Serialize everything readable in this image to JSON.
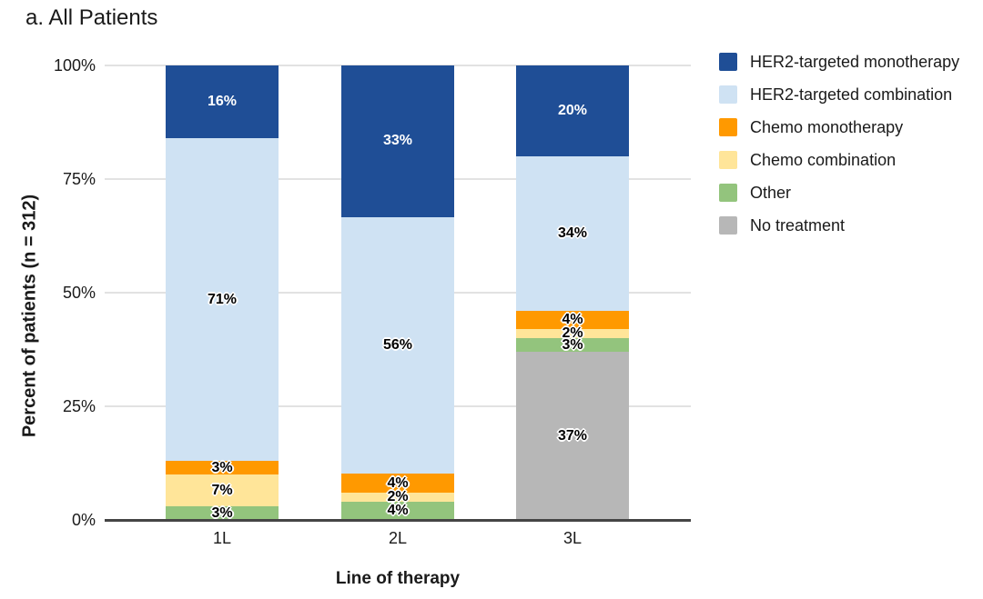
{
  "title": "a. All Patients",
  "chart_data": {
    "type": "bar",
    "stacked": true,
    "stacked_mode": "percent",
    "title": "a. All Patients",
    "xlabel": "Line of therapy",
    "ylabel": "Percent of patients (n = 312)",
    "categories": [
      "1L",
      "2L",
      "3L"
    ],
    "series": [
      {
        "name": "HER2-targeted monotherapy",
        "color": "#1f4e96",
        "label_color": "#ffffff",
        "values": [
          16,
          33,
          20
        ]
      },
      {
        "name": "HER2-targeted combination",
        "color": "#cfe2f3",
        "label_color": "#000000",
        "values": [
          71,
          56,
          34
        ]
      },
      {
        "name": "Chemo monotherapy",
        "color": "#ff9900",
        "label_color": "#000000",
        "values": [
          3,
          4,
          4
        ]
      },
      {
        "name": "Chemo combination",
        "color": "#ffe599",
        "label_color": "#000000",
        "values": [
          7,
          2,
          2
        ]
      },
      {
        "name": "Other",
        "color": "#93c47d",
        "label_color": "#000000",
        "values": [
          3,
          4,
          3
        ]
      },
      {
        "name": "No treatment",
        "color": "#b7b7b7",
        "label_color": "#000000",
        "values": [
          0,
          0,
          37
        ]
      }
    ],
    "data_label_suffix": "%",
    "yticks": [
      "100%",
      "75%",
      "50%",
      "25%",
      "0%"
    ],
    "ylim": [
      0,
      100
    ],
    "grid": true,
    "legend_position": "right",
    "colors": {
      "gridline": "#e2e2e2",
      "axis_line": "#454545",
      "text": "#1a1a1a",
      "background": "#ffffff"
    }
  }
}
